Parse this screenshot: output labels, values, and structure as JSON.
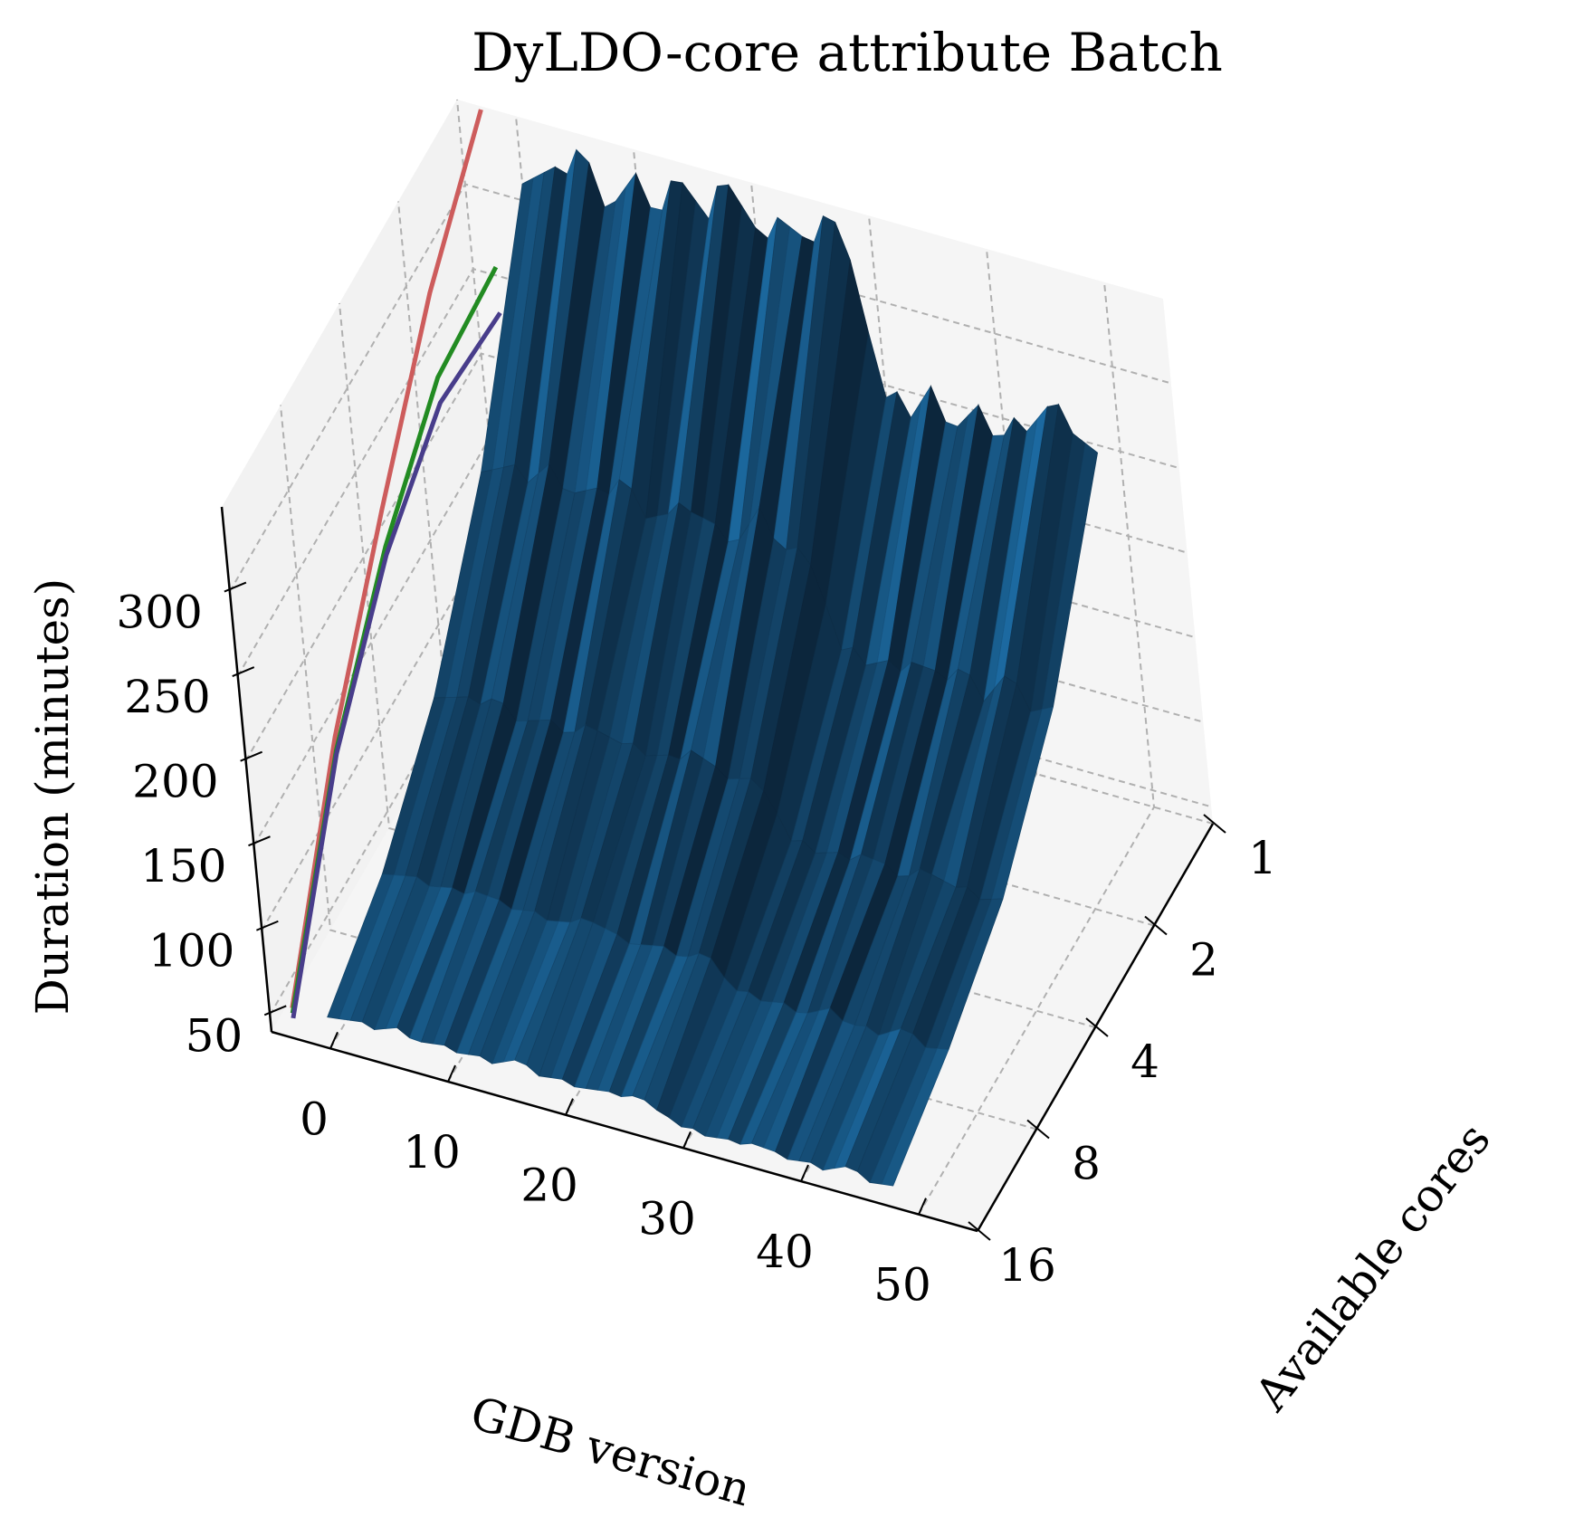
{
  "chart_data": {
    "type": "surface3d",
    "title": "DyLDO-core attribute Batch",
    "xlabel": "GDB version",
    "ylabel": "Available cores",
    "zlabel": "Duration (minutes)",
    "x_ticks": [
      0,
      10,
      20,
      30,
      40,
      50
    ],
    "y_ticks": [
      1,
      2,
      4,
      8,
      16
    ],
    "z_ticks": [
      50,
      100,
      150,
      200,
      250,
      300
    ],
    "xlim": [
      -5,
      55
    ],
    "ylim": [
      0,
      16
    ],
    "zlim": [
      40,
      350
    ],
    "grid": true,
    "colors": {
      "surface_dark": "#0b2236",
      "surface_light": "#1f77b4",
      "pane": "#f5f5f5",
      "grid": "#b0b0b0",
      "red": "#cd5c5c",
      "green": "#228b22",
      "purple": "#483d8b"
    },
    "surface": {
      "x_range": [
        0,
        48
      ],
      "cores": [
        1,
        2,
        4,
        8,
        16
      ],
      "rows": [
        {
          "cores": 1,
          "base": 318,
          "peaks": [
            [
              5,
              22
            ],
            [
              10,
              10
            ],
            [
              14,
              28
            ],
            [
              18,
              32
            ],
            [
              22,
              18
            ],
            [
              26,
              24
            ],
            [
              28,
              10
            ],
            [
              30,
              26
            ]
          ],
          "drop_at": 30,
          "after": 240,
          "tail": [
            [
              34,
              12
            ],
            [
              38,
              6
            ],
            [
              42,
              14
            ],
            [
              44,
              22
            ],
            [
              46,
              18
            ]
          ]
        },
        {
          "cores": 2,
          "base": 205,
          "peaks": [
            [
              6,
              8
            ],
            [
              12,
              14
            ],
            [
              18,
              10
            ],
            [
              24,
              16
            ]
          ],
          "drop_at": 30,
          "after": 152,
          "tail": [
            [
              36,
              8
            ],
            [
              40,
              10
            ],
            [
              44,
              12
            ]
          ]
        },
        {
          "cores": 4,
          "base": 130,
          "peaks": [
            [
              5,
              6
            ],
            [
              14,
              8
            ],
            [
              22,
              10
            ]
          ],
          "drop_at": 30,
          "after": 100,
          "tail": [
            [
              36,
              6
            ],
            [
              42,
              8
            ]
          ]
        },
        {
          "cores": 8,
          "base": 85,
          "peaks": [
            [
              8,
              4
            ],
            [
              18,
              6
            ],
            [
              28,
              5
            ]
          ],
          "drop_at": 30,
          "after": 72,
          "tail": [
            [
              38,
              4
            ],
            [
              44,
              5
            ]
          ]
        },
        {
          "cores": 16,
          "base": 60,
          "peaks": [
            [
              6,
              3
            ],
            [
              16,
              4
            ],
            [
              26,
              3
            ]
          ],
          "drop_at": 30,
          "after": 52,
          "tail": [
            [
              36,
              3
            ],
            [
              44,
              4
            ]
          ]
        }
      ]
    },
    "series": [
      {
        "color": "red",
        "x": -3,
        "cores": [
          16,
          8,
          4,
          2,
          1
        ],
        "values": [
          58,
          158,
          232,
          300,
          348
        ]
      },
      {
        "color": "green",
        "x": -3,
        "cores": [
          16,
          8,
          4,
          2,
          1
        ],
        "values": [
          55,
          150,
          210,
          250,
          255
        ]
      },
      {
        "color": "purple",
        "x": -3,
        "cores": [
          16,
          8,
          4,
          2,
          1
        ],
        "values": [
          52,
          148,
          205,
          235,
          228
        ]
      }
    ]
  }
}
